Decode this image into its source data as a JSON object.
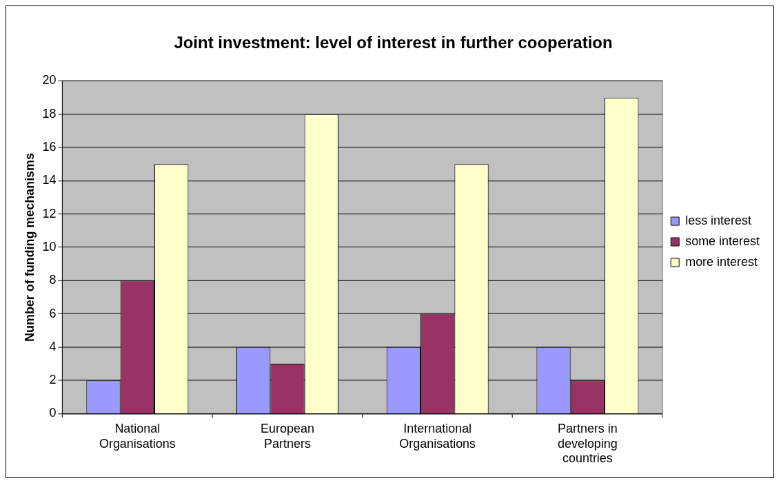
{
  "chart_data": {
    "type": "bar",
    "title": "Joint investment: level of interest in further cooperation",
    "ylabel": "Number of funding mechanisms",
    "categories": [
      "National Organisations",
      "European Partners",
      "International Organisations",
      "Partners in developing countries"
    ],
    "series": [
      {
        "name": "less interest",
        "color": "#9999ff",
        "values": [
          2,
          4,
          4,
          4
        ]
      },
      {
        "name": "some interest",
        "color": "#993366",
        "values": [
          8,
          3,
          6,
          2
        ]
      },
      {
        "name": "more interest",
        "color": "#ffffcc",
        "values": [
          15,
          18,
          15,
          19
        ]
      }
    ],
    "ylim": [
      0,
      20
    ],
    "yticks": [
      0,
      2,
      4,
      6,
      8,
      10,
      12,
      14,
      16,
      18,
      20
    ],
    "grid": "y",
    "legend": "right"
  }
}
